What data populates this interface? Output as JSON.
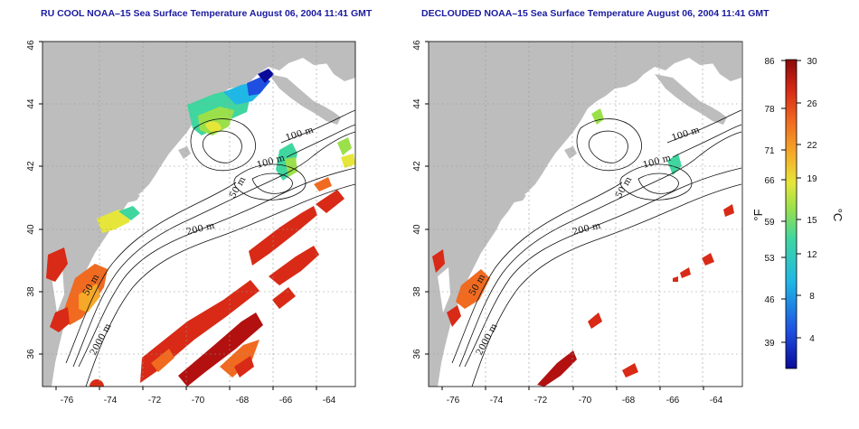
{
  "panels": [
    {
      "id": "left",
      "title": "RU COOL NOAA–15 Sea Surface Temperature August 06, 2004 11:41 GMT",
      "x_ticks": [
        "-76",
        "-74",
        "-72",
        "-70",
        "-68",
        "-66",
        "-64"
      ],
      "y_ticks": [
        "36",
        "38",
        "40",
        "42",
        "44",
        "46"
      ],
      "contour_labels": [
        "100 m",
        "100 m",
        "50 m",
        "200 m",
        "50 m",
        "2000 m"
      ]
    },
    {
      "id": "right",
      "title": "DECLOUDED NOAA–15 Sea Surface Temperature August 06, 2004 11:41 GMT",
      "x_ticks": [
        "-76",
        "-74",
        "-72",
        "-70",
        "-68",
        "-66",
        "-64"
      ],
      "y_ticks": [
        "36",
        "38",
        "40",
        "42",
        "44",
        "46"
      ],
      "contour_labels": [
        "100 m",
        "100 m",
        "50 m",
        "200 m",
        "50 m",
        "2000 m"
      ]
    }
  ],
  "colorbar": {
    "unit_f": "°F",
    "unit_c": "°C",
    "fahrenheit_ticks": [
      "86",
      "78",
      "71",
      "66",
      "59",
      "53",
      "46",
      "39"
    ],
    "celsius_ticks": [
      "30",
      "26",
      "22",
      "19",
      "15",
      "12",
      "8",
      "4"
    ]
  },
  "colors": {
    "land": "#bdbdbd",
    "ocean": "#ffffff",
    "title": "#1a1aa0",
    "warm": "#d83a1a",
    "hot": "#b31010",
    "mid": "#f47a20",
    "green": "#7ed957",
    "cyan": "#3fd6c8",
    "blue": "#1a56d6"
  }
}
